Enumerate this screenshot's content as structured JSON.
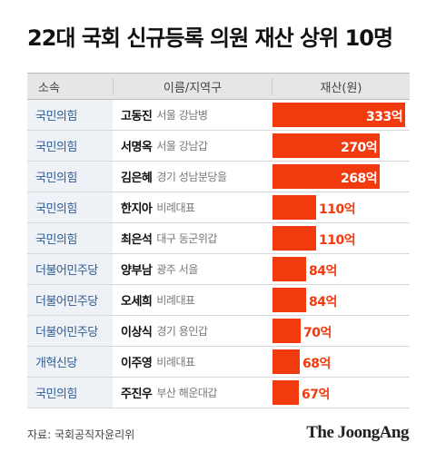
{
  "title": "22대 국회 신규등록 의원 재산 상위 10명",
  "header": {
    "party": "소속",
    "name": "이름/지역구",
    "asset": "재산(원)"
  },
  "source": "자료: 국회공직자윤리위",
  "brand": "The JoongAng",
  "colors": {
    "bar": "#f23a0f",
    "party_text": "#2f5d93",
    "party_bg": "#eef1f6"
  },
  "chart_data": {
    "type": "bar",
    "orientation": "horizontal",
    "title": "22대 국회 신규등록 의원 재산 상위 10명",
    "value_label": "재산(원)",
    "unit": "억",
    "categories": [
      "고동진",
      "서명옥",
      "김은혜",
      "한지아",
      "최은석",
      "양부남",
      "오세희",
      "이상식",
      "이주영",
      "주진우"
    ],
    "rows": [
      {
        "party": "국민의힘",
        "name": "고동진",
        "region": "서울 강남병",
        "value": 333,
        "label": "333억"
      },
      {
        "party": "국민의힘",
        "name": "서명옥",
        "region": "서울 강남갑",
        "value": 270,
        "label": "270억"
      },
      {
        "party": "국민의힘",
        "name": "김은혜",
        "region": "경기 성남분당을",
        "value": 268,
        "label": "268억"
      },
      {
        "party": "국민의힘",
        "name": "한지아",
        "region": "비례대표",
        "value": 110,
        "label": "110억"
      },
      {
        "party": "국민의힘",
        "name": "최은석",
        "region": "대구 동군위갑",
        "value": 110,
        "label": "110억"
      },
      {
        "party": "더불어민주당",
        "name": "양부남",
        "region": "광주 서을",
        "value": 84,
        "label": "84억"
      },
      {
        "party": "더불어민주당",
        "name": "오세희",
        "region": "비례대표",
        "value": 84,
        "label": "84억"
      },
      {
        "party": "더불어민주당",
        "name": "이상식",
        "region": "경기 용인갑",
        "value": 70,
        "label": "70억"
      },
      {
        "party": "개혁신당",
        "name": "이주영",
        "region": "비례대표",
        "value": 68,
        "label": "68억"
      },
      {
        "party": "국민의힘",
        "name": "주진우",
        "region": "부산 해운대갑",
        "value": 67,
        "label": "67억"
      }
    ],
    "xlim": [
      0,
      333
    ]
  }
}
